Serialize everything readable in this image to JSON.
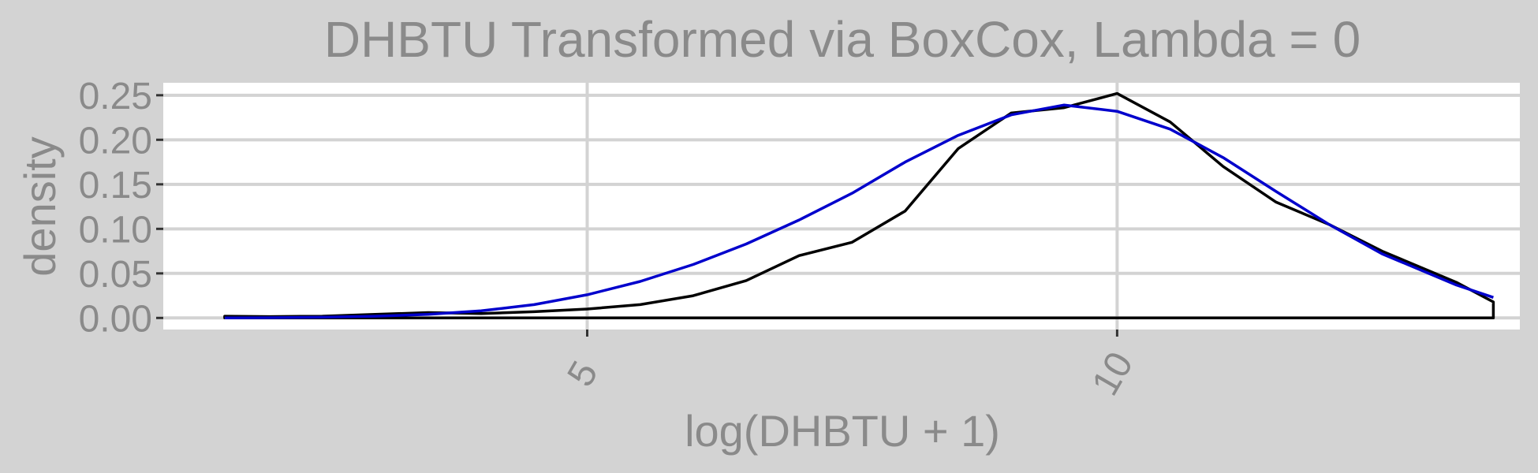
{
  "chart_data": {
    "type": "area",
    "title": "DHBTU Transformed via BoxCox, Lambda = 0",
    "xlabel": "log(DHBTU + 1)",
    "ylabel": "density",
    "xlim": [
      1.0,
      13.8
    ],
    "ylim": [
      -0.013,
      0.264
    ],
    "x_ticks": [
      5,
      10
    ],
    "x_tick_labels": [
      "5",
      "10"
    ],
    "y_ticks": [
      0.0,
      0.05,
      0.1,
      0.15,
      0.2,
      0.25
    ],
    "y_tick_labels": [
      "0.00",
      "0.05",
      "0.10",
      "0.15",
      "0.20",
      "0.25"
    ],
    "grid": true,
    "series": [
      {
        "kind": "density",
        "color": "#000000",
        "x": [
          1.58,
          2.0,
          2.5,
          3.0,
          3.5,
          4.0,
          4.5,
          5.0,
          5.5,
          6.0,
          6.5,
          7.0,
          7.5,
          8.0,
          8.5,
          9.0,
          9.5,
          10.0,
          10.5,
          11.0,
          11.5,
          12.0,
          12.5,
          13.2,
          13.55
        ],
        "y": [
          0.002,
          0.0015,
          0.002,
          0.004,
          0.006,
          0.005,
          0.007,
          0.01,
          0.015,
          0.025,
          0.042,
          0.07,
          0.085,
          0.12,
          0.19,
          0.23,
          0.236,
          0.252,
          0.22,
          0.17,
          0.13,
          0.105,
          0.075,
          0.04,
          0.018
        ]
      },
      {
        "kind": "normal-fit",
        "color": "#0000cc",
        "x": [
          1.58,
          2.0,
          2.5,
          3.0,
          3.5,
          4.0,
          4.5,
          5.0,
          5.5,
          6.0,
          6.5,
          7.0,
          7.5,
          8.0,
          8.5,
          9.0,
          9.5,
          10.0,
          10.5,
          11.0,
          11.5,
          12.0,
          12.5,
          13.2,
          13.55
        ],
        "y": [
          0.0001,
          0.0003,
          0.0008,
          0.002,
          0.004,
          0.008,
          0.015,
          0.026,
          0.041,
          0.06,
          0.083,
          0.11,
          0.14,
          0.175,
          0.205,
          0.228,
          0.239,
          0.232,
          0.212,
          0.18,
          0.142,
          0.105,
          0.072,
          0.037,
          0.023
        ]
      }
    ]
  }
}
